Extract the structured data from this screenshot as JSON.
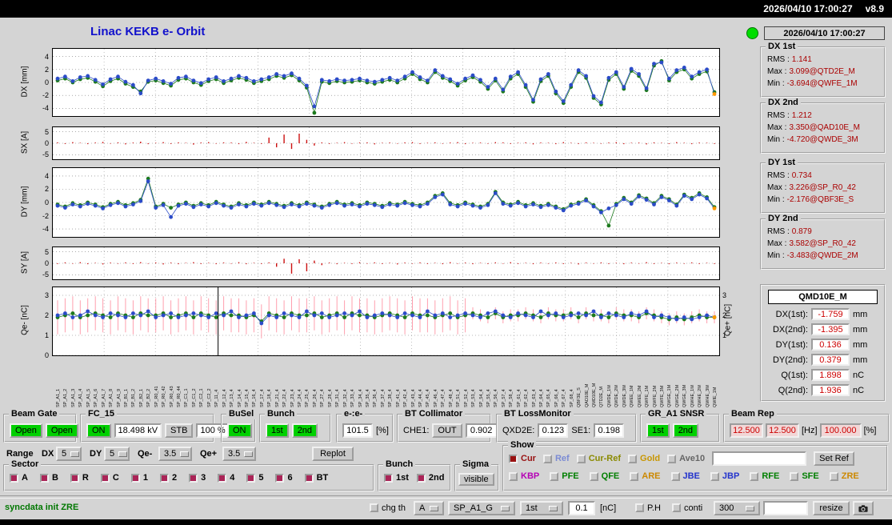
{
  "titlebar": {
    "datetime": "2026/04/10 17:00:27",
    "version": "v8.9"
  },
  "header": {
    "title": "Linac KEKB e- Orbit",
    "status_time": "2026/04/10 17:00:27"
  },
  "stats_labels": {
    "rms": "RMS :",
    "max": "Max :",
    "min": "Min :"
  },
  "stats": [
    {
      "title": "DX 1st",
      "rms": "1.141",
      "max": "3.099@QTD2E_M",
      "min": "-3.694@QWFE_1M"
    },
    {
      "title": "DX 2nd",
      "rms": "1.212",
      "max": "3.350@QAD10E_M",
      "min": "-4.720@QWDE_3M"
    },
    {
      "title": "DY 1st",
      "rms": "0.734",
      "max": "3.226@SP_R0_42",
      "min": "-2.176@QBF3E_S"
    },
    {
      "title": "DY 2nd",
      "rms": "0.879",
      "max": "3.582@SP_R0_42",
      "min": "-3.483@QWDE_2M"
    }
  ],
  "monitor": {
    "title": "QMD10E_M",
    "rows": [
      {
        "label": "DX(1st):",
        "value": "-1.759",
        "unit": "mm"
      },
      {
        "label": "DX(2nd):",
        "value": "-1.395",
        "unit": "mm"
      },
      {
        "label": "DY(1st):",
        "value": "0.136",
        "unit": "mm"
      },
      {
        "label": "DY(2nd):",
        "value": "0.379",
        "unit": "mm"
      },
      {
        "label": "Q(1st):",
        "value": "1.898",
        "unit": "nC"
      },
      {
        "label": "Q(2nd):",
        "value": "1.936",
        "unit": "nC"
      }
    ]
  },
  "beam_gate": {
    "title": "Beam Gate",
    "open1": "Open",
    "open2": "Open"
  },
  "fc15": {
    "title": "FC_15",
    "on": "ON",
    "kv": "18.498 kV",
    "stb": "STB",
    "pct": "100 %"
  },
  "busel": {
    "title": "BuSel",
    "on": "ON"
  },
  "bunch": {
    "title": "Bunch",
    "b1": "1st",
    "b2": "2nd"
  },
  "ee": {
    "title": "e-:e-",
    "value": "101.5",
    "unit": "[%]"
  },
  "bt_collimator": {
    "title": "BT Collimator",
    "che1_label": "CHE1:",
    "state": "OUT",
    "value": "0.902"
  },
  "bt_lossmonitor": {
    "title": "BT LossMonitor",
    "qxd2e_label": "QXD2E:",
    "qxd2e": "0.123",
    "se1_label": "SE1:",
    "se1": "0.198"
  },
  "gr_a1": {
    "title": "GR_A1 SNSR",
    "b1": "1st",
    "b2": "2nd"
  },
  "beam_rep": {
    "title": "Beam Rep",
    "v1": "12.500",
    "v2": "12.500",
    "hz": "[Hz]",
    "v3": "100.000",
    "pct": "[%]"
  },
  "range_row": {
    "label": "Range",
    "dx_label": "DX",
    "dx": "5",
    "dy_label": "DY",
    "dy": "5",
    "qem_label": "Qe-",
    "qem": "3.5",
    "qep_label": "Qe+",
    "qep": "3.5",
    "replot": "Replot"
  },
  "sector": {
    "title": "Sector",
    "items": [
      "A",
      "B",
      "R",
      "C",
      "1",
      "2",
      "3",
      "4",
      "5",
      "6",
      "BT"
    ]
  },
  "bunch2": {
    "title": "Bunch",
    "items": [
      "1st",
      "2nd"
    ]
  },
  "sigma": {
    "title": "Sigma",
    "button": "visible"
  },
  "show": {
    "title": "Show",
    "row1": [
      {
        "label": "Cur",
        "color": "#991111",
        "checked": true
      },
      {
        "label": "Ref",
        "color": "#7b8bd4",
        "checked": false
      },
      {
        "label": "Cur-Ref",
        "color": "#8a8a00",
        "checked": false
      },
      {
        "label": "Gold",
        "color": "#c89600",
        "checked": false
      },
      {
        "label": "Ave10",
        "color": "#666666",
        "checked": false
      }
    ],
    "ref_input": "",
    "set_ref": "Set Ref",
    "row2": [
      {
        "label": "KBP",
        "color": "#b400b4",
        "checked": false
      },
      {
        "label": "PFE",
        "color": "#007f00",
        "checked": false
      },
      {
        "label": "QFE",
        "color": "#007f00",
        "checked": false
      },
      {
        "label": "ARE",
        "color": "#cc8800",
        "checked": false
      },
      {
        "label": "JBE",
        "color": "#2233cc",
        "checked": false
      },
      {
        "label": "JBP",
        "color": "#2233cc",
        "checked": false
      },
      {
        "label": "RFE",
        "color": "#007f00",
        "checked": false
      },
      {
        "label": "SFE",
        "color": "#007f00",
        "checked": false
      },
      {
        "label": "ZRE",
        "color": "#cc8800",
        "checked": false
      }
    ]
  },
  "statusbar": {
    "message": "syncdata init ZRE",
    "chg_th": "chg th",
    "opt_a": "A",
    "opt_device": "SP_A1_G",
    "opt_bunch": "1st",
    "threshold": "0.1",
    "threshold_unit": "[nC]",
    "ph": "P.H",
    "conti": "conti",
    "opt_points": "300",
    "blank": "",
    "resize": "resize"
  },
  "chart_data": [
    {
      "id": "dx",
      "type": "scatter",
      "ylabel": "DX [mm]",
      "ylim": [
        -5.2,
        5.2
      ],
      "yticks": [
        4,
        2,
        0,
        -2,
        -4
      ],
      "series": [
        {
          "name": "2nd bunch",
          "color": "#1d7a1d",
          "values": [
            0.3,
            0.6,
            0.0,
            0.5,
            0.7,
            0.1,
            -0.6,
            0.2,
            0.6,
            -0.2,
            -0.7,
            -1.4,
            0.1,
            0.3,
            -0.1,
            -0.5,
            0.4,
            0.6,
            0.0,
            -0.4,
            0.2,
            0.5,
            -0.1,
            0.3,
            0.7,
            0.4,
            -0.1,
            0.2,
            0.5,
            1.0,
            0.7,
            1.1,
            0.3,
            -0.8,
            -4.7,
            0.1,
            -0.1,
            0.2,
            0.0,
            0.1,
            0.3,
            0.0,
            -0.2,
            0.1,
            0.4,
            0.0,
            0.6,
            1.3,
            0.5,
            0.0,
            1.6,
            0.7,
            0.2,
            -0.5,
            0.3,
            0.8,
            0.1,
            -1.0,
            0.3,
            -1.4,
            0.6,
            1.3,
            -0.7,
            -3.0,
            0.2,
            1.0,
            -1.7,
            -3.2,
            -0.7,
            1.6,
            0.7,
            -2.4,
            -3.4,
            0.4,
            1.3,
            -1.0,
            1.8,
            1.0,
            -1.2,
            2.6,
            3.3,
            0.3,
            1.6,
            2.0,
            0.6,
            1.3,
            1.7,
            -1.5
          ]
        },
        {
          "name": "1st bunch",
          "color": "#2b4bc8",
          "last_color": "#ff9900",
          "values": [
            0.6,
            0.9,
            0.2,
            0.8,
            1.0,
            0.4,
            -0.3,
            0.5,
            0.9,
            0.1,
            -0.4,
            -1.7,
            0.3,
            0.6,
            0.2,
            -0.2,
            0.7,
            0.9,
            0.3,
            -0.1,
            0.5,
            0.8,
            0.2,
            0.6,
            1.0,
            0.7,
            0.2,
            0.5,
            0.8,
            1.3,
            1.0,
            1.4,
            0.6,
            -0.5,
            -3.7,
            0.4,
            0.2,
            0.5,
            0.3,
            0.4,
            0.6,
            0.3,
            0.1,
            0.4,
            0.7,
            0.3,
            0.9,
            1.6,
            0.8,
            0.3,
            1.9,
            1.0,
            0.5,
            -0.2,
            0.6,
            1.1,
            0.4,
            -0.7,
            0.6,
            -1.1,
            0.9,
            1.6,
            -0.4,
            -2.7,
            0.5,
            1.3,
            -1.4,
            -2.9,
            -0.4,
            1.9,
            1.0,
            -2.1,
            -3.1,
            0.7,
            1.6,
            -0.7,
            2.1,
            1.3,
            -0.9,
            2.9,
            3.1,
            0.6,
            1.9,
            2.3,
            0.9,
            1.6,
            2.0,
            -1.8
          ]
        }
      ]
    },
    {
      "id": "sx",
      "type": "bar",
      "ylabel": "SX [A]",
      "ylim": [
        -7,
        7
      ],
      "yticks": [
        5,
        0,
        -5
      ],
      "color": "#cc1111",
      "values": [
        0.4,
        -0.3,
        0.5,
        0.2,
        -0.4,
        0.3,
        0.6,
        -0.2,
        0.4,
        -0.5,
        0.3,
        0.7,
        -0.4,
        0.2,
        0.5,
        -0.3,
        0.4,
        0.2,
        -0.6,
        0.3,
        0.5,
        -0.2,
        0.4,
        0.3,
        -0.4,
        0.6,
        0.2,
        -0.3,
        2.5,
        -1.8,
        3.8,
        -2.5,
        4.2,
        1.5,
        -1.0,
        0.4,
        -0.3,
        0.2,
        0.5,
        -0.2,
        0.3,
        0.4,
        -0.5,
        0.2,
        0.3,
        -0.2,
        0.4,
        0.5,
        -0.3,
        0.2,
        0.4,
        -0.2,
        0.3,
        0.5,
        -0.4,
        0.2,
        0.3,
        -0.2,
        0.5,
        0.4,
        -0.3,
        0.2,
        0.4,
        -0.5,
        0.3,
        0.2,
        -0.4,
        0.5,
        0.2,
        -0.3,
        0.4,
        0.2,
        -0.2,
        0.3,
        0.5,
        -0.4,
        0.2,
        0.3,
        -0.5,
        0.4,
        0.2,
        -0.3,
        0.5,
        0.2,
        -0.4,
        0.3,
        0.2,
        -0.3
      ]
    },
    {
      "id": "dy",
      "type": "scatter",
      "ylabel": "DY [mm]",
      "ylim": [
        -5.2,
        5.2
      ],
      "yticks": [
        4,
        2,
        0,
        -2,
        -4
      ],
      "series": [
        {
          "name": "2nd bunch",
          "color": "#1d7a1d",
          "values": [
            -0.3,
            -0.6,
            -0.1,
            -0.4,
            0.0,
            -0.3,
            -0.7,
            -0.2,
            0.1,
            -0.4,
            -0.1,
            0.4,
            3.6,
            -0.6,
            -0.2,
            -0.8,
            -0.3,
            0.0,
            -0.5,
            -0.1,
            -0.4,
            0.1,
            -0.3,
            -0.6,
            -0.1,
            -0.4,
            0.0,
            -0.3,
            0.1,
            -0.2,
            -0.5,
            -0.1,
            -0.4,
            0.0,
            -0.3,
            -0.6,
            -0.2,
            0.1,
            -0.3,
            -0.1,
            -0.4,
            0.0,
            -0.2,
            -0.5,
            -0.1,
            -0.3,
            0.1,
            -0.2,
            -0.4,
            0.0,
            1.0,
            1.4,
            -0.1,
            -0.4,
            0.0,
            -0.3,
            -0.6,
            -0.2,
            1.6,
            0.0,
            -0.3,
            0.1,
            -0.4,
            -0.1,
            -0.5,
            -0.2,
            -0.6,
            -1.0,
            -0.3,
            0.0,
            0.5,
            -0.4,
            -1.3,
            -3.5,
            -0.2,
            0.7,
            0.0,
            1.1,
            0.6,
            -0.1,
            1.0,
            0.5,
            -0.3,
            1.2,
            0.7,
            1.4,
            0.8,
            -0.7
          ]
        },
        {
          "name": "1st bunch",
          "color": "#2b4bc8",
          "last_color": "#ff9900",
          "values": [
            -0.5,
            -0.8,
            -0.3,
            -0.6,
            -0.2,
            -0.5,
            -0.9,
            -0.4,
            -0.1,
            -0.6,
            -0.3,
            0.2,
            3.2,
            -0.8,
            -0.4,
            -2.2,
            -0.5,
            -0.2,
            -0.7,
            -0.3,
            -0.6,
            -0.1,
            -0.5,
            -0.8,
            -0.3,
            -0.6,
            -0.2,
            -0.5,
            -0.1,
            -0.4,
            -0.7,
            -0.3,
            -0.6,
            -0.2,
            -0.5,
            -0.8,
            -0.4,
            -0.1,
            -0.5,
            -0.3,
            -0.6,
            -0.2,
            -0.4,
            -0.7,
            -0.3,
            -0.5,
            -0.1,
            -0.4,
            -0.6,
            -0.2,
            0.8,
            1.2,
            -0.3,
            -0.6,
            -0.2,
            -0.5,
            -0.8,
            -0.4,
            1.4,
            -0.2,
            -0.5,
            -0.1,
            -0.6,
            -0.3,
            -0.7,
            -0.4,
            -0.8,
            -1.2,
            -0.5,
            -0.2,
            0.3,
            -0.6,
            -1.5,
            -0.9,
            -0.4,
            0.5,
            -0.2,
            0.9,
            0.4,
            -0.3,
            0.8,
            0.3,
            -0.5,
            1.0,
            0.5,
            1.2,
            0.6,
            -0.9
          ]
        }
      ]
    },
    {
      "id": "sy",
      "type": "bar",
      "ylabel": "SY [A]",
      "ylim": [
        -7,
        7
      ],
      "yticks": [
        5,
        0,
        -5
      ],
      "color": "#cc1111",
      "values": [
        -0.3,
        0.4,
        -0.2,
        0.5,
        -0.4,
        0.2,
        -0.5,
        0.3,
        -0.2,
        0.4,
        -0.3,
        0.5,
        -0.2,
        0.4,
        -0.5,
        0.3,
        -0.4,
        0.2,
        0.5,
        -0.3,
        0.2,
        -0.4,
        0.3,
        -0.2,
        0.5,
        -0.4,
        0.2,
        -0.3,
        0.4,
        -1.5,
        2.0,
        -4.5,
        1.8,
        -3.5,
        1.2,
        -0.8,
        0.3,
        -0.4,
        0.2,
        -0.3,
        0.5,
        -0.2,
        0.4,
        -0.3,
        0.2,
        -0.5,
        0.3,
        -0.2,
        0.4,
        -0.3,
        0.2,
        -0.4,
        0.5,
        -0.2,
        0.3,
        -0.4,
        0.2,
        -0.3,
        0.4,
        -0.2,
        0.5,
        -0.3,
        0.2,
        -0.4,
        0.3,
        -0.2,
        0.4,
        -0.3,
        0.2,
        -0.5,
        0.3,
        -0.2,
        0.4,
        -0.3,
        0.2,
        -0.4,
        0.3,
        -0.2,
        0.5,
        -0.3,
        0.2,
        -0.4,
        0.3,
        -0.2,
        0.4,
        -0.3,
        0.2,
        -0.3
      ]
    },
    {
      "id": "qe",
      "type": "scatter",
      "ylabel": "Qe- [nC]",
      "ylabel_right": "Qe+ [nC]",
      "ylim": [
        0,
        3.4
      ],
      "yticks": [
        3,
        2,
        1,
        0
      ],
      "yticks_right": [
        3,
        2,
        1
      ],
      "vline_frac": 0.248,
      "error_bars": {
        "color": "#ff9fae",
        "left_err": 0.85,
        "right_err": 0.3,
        "split": 55
      },
      "series": [
        {
          "name": "2nd bunch",
          "color": "#1d7a1d",
          "values": [
            1.9,
            2.0,
            2.1,
            1.9,
            2.0,
            2.1,
            2.0,
            1.9,
            2.1,
            2.0,
            1.9,
            2.1,
            2.0,
            2.0,
            2.1,
            1.9,
            2.0,
            2.1,
            1.9,
            2.1,
            2.0,
            1.9,
            2.1,
            2.0,
            2.0,
            1.9,
            2.0,
            1.7,
            2.1,
            2.0,
            1.9,
            2.1,
            2.0,
            2.0,
            2.1,
            1.9,
            2.0,
            2.1,
            1.9,
            2.1,
            2.0,
            2.0,
            1.9,
            2.0,
            2.1,
            2.0,
            1.9,
            2.1,
            2.0,
            2.0,
            1.9,
            2.0,
            2.1,
            1.9,
            2.0,
            2.1,
            2.0,
            1.9,
            2.1,
            1.9,
            2.0,
            2.0,
            2.1,
            2.0,
            1.9,
            2.1,
            2.0,
            2.0,
            2.1,
            1.9,
            2.1,
            2.0,
            2.0,
            1.9,
            2.1,
            2.0,
            2.0,
            1.9,
            2.1,
            2.0,
            1.9,
            1.8,
            1.9,
            1.8,
            1.9,
            2.0,
            1.9,
            1.9
          ]
        },
        {
          "name": "1st bunch",
          "color": "#2b4bc8",
          "last_color": "#ff9900",
          "values": [
            2.0,
            2.1,
            1.9,
            2.0,
            2.2,
            2.0,
            1.9,
            2.1,
            2.0,
            1.9,
            2.1,
            2.0,
            2.2,
            1.9,
            2.0,
            2.1,
            1.9,
            2.0,
            2.1,
            2.0,
            1.9,
            2.1,
            2.0,
            2.2,
            1.9,
            2.0,
            2.1,
            1.6,
            2.0,
            1.9,
            2.1,
            2.0,
            1.9,
            2.2,
            2.0,
            2.1,
            1.9,
            2.0,
            2.1,
            2.0,
            2.2,
            1.9,
            2.0,
            2.1,
            2.0,
            1.9,
            2.1,
            2.0,
            1.9,
            2.2,
            2.0,
            2.1,
            1.9,
            2.0,
            2.1,
            2.0,
            1.9,
            2.1,
            2.2,
            2.0,
            1.9,
            2.1,
            2.0,
            1.9,
            2.2,
            2.0,
            2.1,
            1.9,
            2.0,
            2.1,
            2.0,
            2.2,
            1.9,
            2.1,
            2.0,
            1.9,
            2.1,
            2.0,
            2.2,
            1.9,
            2.0,
            1.9,
            1.8,
            1.9,
            1.8,
            1.9,
            2.0,
            1.9
          ]
        }
      ]
    }
  ],
  "bpm_names": [
    "SP_A1_1",
    "SP_A1_2",
    "SP_A1_3",
    "SP_A1_4",
    "SP_A1_5",
    "SP_A1_6",
    "SP_A1_7",
    "SP_A1_8",
    "SP_A1_9",
    "SP_B1_1",
    "SP_B1_2",
    "SP_B2_1",
    "SP_B2_2",
    "SP_R0_41",
    "SP_R0_42",
    "SP_R0_43",
    "SP_R0_44",
    "SP_C1_1",
    "SP_C1_2",
    "SP_C2_1",
    "SP_C2_2",
    "SP_11_4",
    "SP_12_4",
    "SP_13_4",
    "SP_14_4",
    "SP_15_4",
    "SP_16_4",
    "SP_17_4",
    "SP_18_4",
    "SP_21_4",
    "SP_22_4",
    "SP_23_4",
    "SP_24_4",
    "SP_25_4",
    "SP_26_4",
    "SP_27_4",
    "SP_28_4",
    "SP_31_4",
    "SP_32_4",
    "SP_33_4",
    "SP_34_4",
    "SP_35_4",
    "SP_36_4",
    "SP_37_4",
    "SP_38_4",
    "SP_41_4",
    "SP_42_4",
    "SP_43_4",
    "SP_44_4",
    "SP_45_4",
    "SP_46_4",
    "SP_47_4",
    "SP_48_4",
    "SP_51_4",
    "SP_52_4",
    "SP_53_4",
    "SP_54_4",
    "SP_55_4",
    "SP_56_4",
    "SP_57_4",
    "SP_58_4",
    "SP_61_4",
    "SP_62_4",
    "SP_63_4",
    "SP_64_4",
    "SP_65_4",
    "SP_66_4",
    "SP_67_4",
    "SP_68_4",
    "QBF3E_S",
    "QAD10E_M",
    "QMD10E_M",
    "QTD2E_M",
    "QWDE_1M",
    "QWDE_2M",
    "QWDE_3M",
    "QWEE_1M",
    "QWEE_2M",
    "QWFE_1M",
    "QWFE_2M",
    "QWFE_3M",
    "QWGE_1M",
    "QWGE_2M",
    "QWGE_3M",
    "QWHE_1M",
    "QWHE_2M",
    "QWHE_3M",
    "QWIE_1M"
  ]
}
